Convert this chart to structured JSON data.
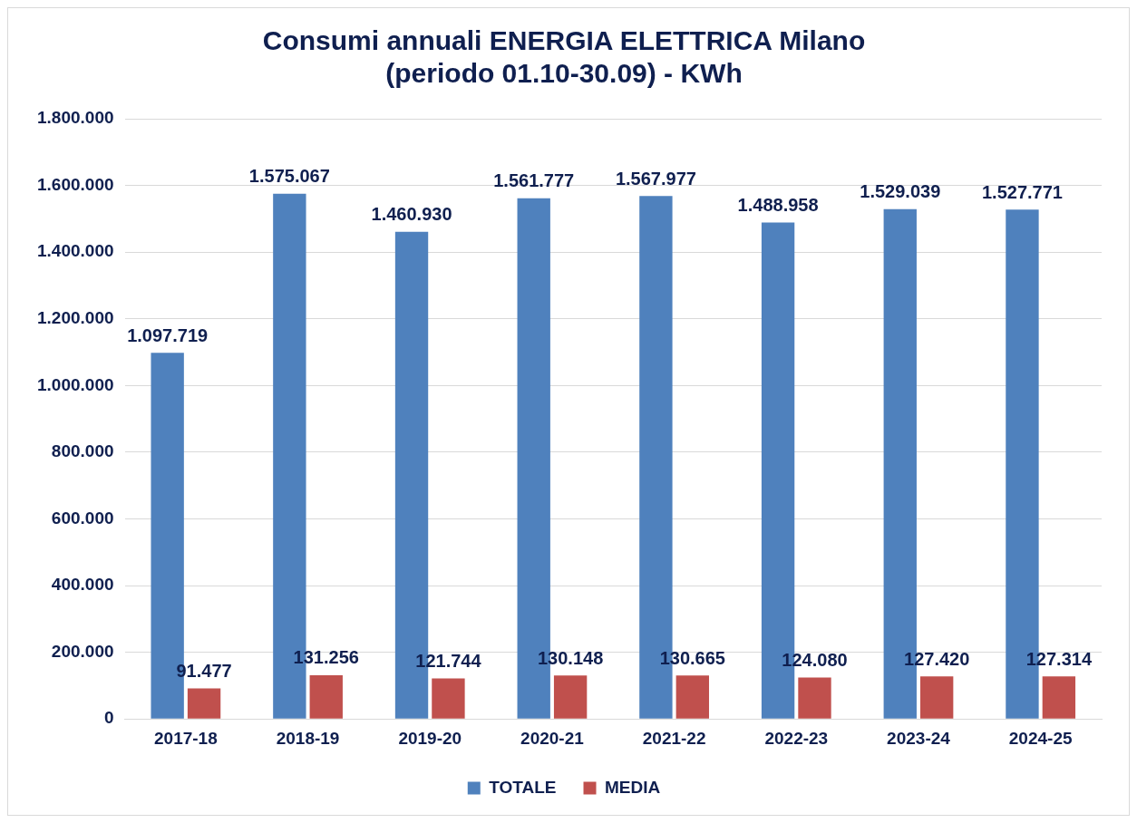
{
  "chart_data": {
    "type": "bar",
    "title": "Consumi annuali ENERGIA ELETTRICA Milano\n(periodo 01.10-30.09) - KWh",
    "categories": [
      "2017-18",
      "2018-19",
      "2019-20",
      "2020-21",
      "2021-22",
      "2022-23",
      "2023-24",
      "2024-25"
    ],
    "series": [
      {
        "name": "TOTALE",
        "color": "#4f81bd",
        "values": [
          1097719,
          1575067,
          1460930,
          1561777,
          1567977,
          1488958,
          1529039,
          1527771
        ],
        "value_labels": [
          "1.097.719",
          "1.575.067",
          "1.460.930",
          "1.561.777",
          "1.567.977",
          "1.488.958",
          "1.529.039",
          "1.527.771"
        ]
      },
      {
        "name": "MEDIA",
        "color": "#c0504d",
        "values": [
          91477,
          131256,
          121744,
          130148,
          130665,
          124080,
          127420,
          127314
        ],
        "value_labels": [
          "91.477",
          "131.256",
          "121.744",
          "130.148",
          "130.665",
          "124.080",
          "127.420",
          "127.314"
        ]
      }
    ],
    "ylim": [
      0,
      1800000
    ],
    "yticks": [
      {
        "value": 0,
        "label": "0"
      },
      {
        "value": 200000,
        "label": "200.000"
      },
      {
        "value": 400000,
        "label": "400.000"
      },
      {
        "value": 600000,
        "label": "600.000"
      },
      {
        "value": 800000,
        "label": "800.000"
      },
      {
        "value": 1000000,
        "label": "1.000.000"
      },
      {
        "value": 1200000,
        "label": "1.200.000"
      },
      {
        "value": 1400000,
        "label": "1.400.000"
      },
      {
        "value": 1600000,
        "label": "1.600.000"
      },
      {
        "value": 1800000,
        "label": "1.800.000"
      }
    ],
    "grid": "y",
    "legend": "bottom"
  }
}
